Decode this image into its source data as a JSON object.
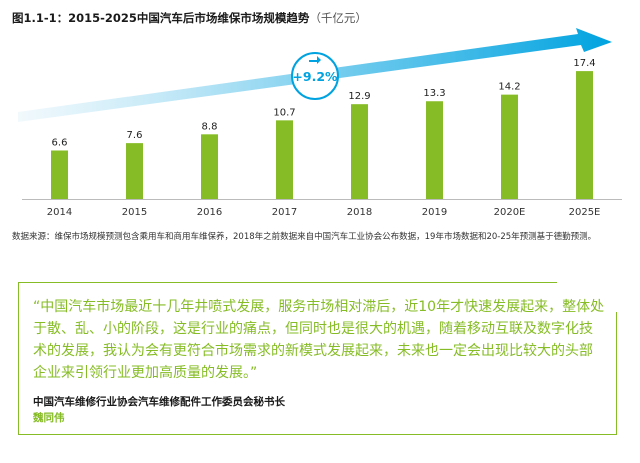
{
  "figure": {
    "title": "图1.1-1：2015-2025中国汽车后市场维保市场规模趋势",
    "unit": "（千亿元）"
  },
  "chart_data": {
    "type": "bar",
    "categories": [
      "2014",
      "2015",
      "2016",
      "2017",
      "2018",
      "2019",
      "2020E",
      "2025E"
    ],
    "values": [
      6.6,
      7.6,
      8.8,
      10.7,
      12.9,
      13.3,
      14.2,
      17.4
    ],
    "value_labels": [
      "6.6",
      "7.6",
      "8.8",
      "10.7",
      "12.9",
      "13.3",
      "14.2",
      "17.4"
    ],
    "ylim": [
      0,
      20
    ],
    "grid": false,
    "bar_color": "#86bc25",
    "arrow_color": "#00a3e0",
    "growth_badge": "+9.2%"
  },
  "source": {
    "text": "数据来源：维保市场规模预测包含乘用车和商用车维保养，2018年之前数据来自中国汽车工业协会公布数据，19年市场数据和20-25年预测基于德勤预测。"
  },
  "quote": {
    "text": "“中国汽车市场最近十几年井喷式发展，服务市场相对滞后，近10年才快速发展起来，整体处于散、乱、小的阶段，这是行业的痛点，但同时也是很大的机遇，随着移动互联及数字化技术的发展，我认为会有更符合市场需求的新模式发展起来，未来也一定会出现比较大的头部企业来引领行业更加高质量的发展。”",
    "author_title": "中国汽车维修行业协会汽车维修配件工作委员会秘书长",
    "author_name": "魏同伟"
  }
}
